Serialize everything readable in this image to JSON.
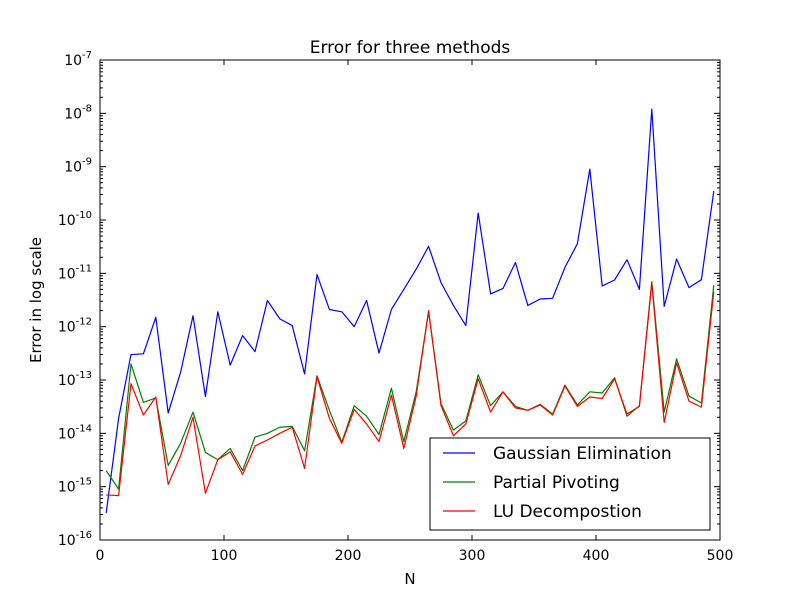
{
  "chart_data": {
    "type": "line",
    "title": "Error for three methods",
    "xlabel": "N",
    "ylabel": "Error in log scale",
    "xlim": [
      0,
      500
    ],
    "ylim": [
      1e-16,
      1e-07
    ],
    "yscale": "log",
    "grid": false,
    "legend_position": "lower-right",
    "x_ticks": [
      {
        "value": 0,
        "label": "0"
      },
      {
        "value": 100,
        "label": "100"
      },
      {
        "value": 200,
        "label": "200"
      },
      {
        "value": 300,
        "label": "300"
      },
      {
        "value": 400,
        "label": "400"
      },
      {
        "value": 500,
        "label": "500"
      }
    ],
    "y_ticks": [
      {
        "exp": -16,
        "base": "10",
        "sup": "-16"
      },
      {
        "exp": -15,
        "base": "10",
        "sup": "-15"
      },
      {
        "exp": -14,
        "base": "10",
        "sup": "-14"
      },
      {
        "exp": -13,
        "base": "10",
        "sup": "-13"
      },
      {
        "exp": -12,
        "base": "10",
        "sup": "-12"
      },
      {
        "exp": -11,
        "base": "10",
        "sup": "-11"
      },
      {
        "exp": -10,
        "base": "10",
        "sup": "-10"
      },
      {
        "exp": -9,
        "base": "10",
        "sup": "-9"
      },
      {
        "exp": -8,
        "base": "10",
        "sup": "-8"
      },
      {
        "exp": -7,
        "base": "10",
        "sup": "-7"
      }
    ],
    "x": [
      5,
      15,
      25,
      35,
      45,
      55,
      65,
      75,
      85,
      95,
      105,
      115,
      125,
      135,
      145,
      155,
      165,
      175,
      185,
      195,
      205,
      215,
      225,
      235,
      245,
      255,
      265,
      275,
      285,
      295,
      305,
      315,
      325,
      335,
      345,
      355,
      365,
      375,
      385,
      395,
      405,
      415,
      425,
      435,
      445,
      455,
      465,
      475,
      485,
      495
    ],
    "series": [
      {
        "name": "Gaussian Elimination",
        "color": "#0000ff",
        "values": [
          3.2e-16,
          1.9e-14,
          3e-13,
          3.1e-13,
          1.5e-12,
          2.4e-14,
          1.4e-13,
          1.6e-12,
          4.9e-14,
          1.9e-12,
          1.9e-13,
          6.8e-13,
          3.4e-13,
          3.1e-12,
          1.4e-12,
          1.05e-12,
          1.3e-13,
          9.5e-12,
          2.1e-12,
          1.9e-12,
          1e-12,
          3.1e-12,
          3.2e-13,
          2.1e-12,
          5e-12,
          1.2e-11,
          3.2e-11,
          6.7e-12,
          2.5e-12,
          1.05e-12,
          1.35e-10,
          4.1e-12,
          5.2e-12,
          1.6e-11,
          2.5e-12,
          3.3e-12,
          3.4e-12,
          1.3e-11,
          3.6e-11,
          9e-10,
          5.8e-12,
          7.5e-12,
          1.8e-11,
          5e-12,
          1.2e-08,
          2.4e-12,
          1.85e-11,
          5.4e-12,
          7.6e-12,
          3.5e-10
        ]
      },
      {
        "name": "Partial Pivoting",
        "color": "#008000",
        "values": [
          2e-15,
          9e-16,
          2e-13,
          3.8e-14,
          4.6e-14,
          2.5e-15,
          6.5e-15,
          2.5e-14,
          4.4e-15,
          3.2e-15,
          5.2e-15,
          2e-15,
          8.5e-15,
          1e-14,
          1.3e-14,
          1.35e-14,
          4.7e-15,
          1.2e-13,
          2.7e-14,
          6.8e-15,
          3.3e-14,
          2.1e-14,
          9.5e-15,
          7e-14,
          7e-15,
          6e-14,
          1.9e-12,
          3.6e-14,
          1.15e-14,
          1.7e-14,
          1.25e-13,
          3.3e-14,
          6e-14,
          3.2e-14,
          2.7e-14,
          3.5e-14,
          2.3e-14,
          8e-14,
          3.4e-14,
          6e-14,
          5.7e-14,
          1.1e-13,
          2.1e-14,
          3.3e-14,
          7e-12,
          2.5e-14,
          2.5e-13,
          5e-14,
          3.7e-14,
          6e-12
        ]
      },
      {
        "name": "LU Decompostion",
        "color": "#ff0000",
        "values": [
          7e-16,
          6.8e-16,
          8.5e-14,
          2.2e-14,
          4.8e-14,
          1.1e-15,
          3.8e-15,
          2e-14,
          7.5e-16,
          3.2e-15,
          4.5e-15,
          1.7e-15,
          5.8e-15,
          7.5e-15,
          1e-14,
          1.3e-14,
          2.2e-15,
          1.15e-13,
          1.9e-14,
          6.5e-15,
          2.8e-14,
          1.5e-14,
          7e-15,
          5.2e-14,
          5.2e-15,
          5e-14,
          2e-12,
          3.3e-14,
          9e-15,
          1.5e-14,
          1.05e-13,
          2.5e-14,
          6e-14,
          3e-14,
          2.7e-14,
          3.4e-14,
          2.2e-14,
          7.7e-14,
          3.2e-14,
          4.8e-14,
          4.5e-14,
          1.05e-13,
          2.3e-14,
          3.2e-14,
          6.5e-12,
          1.6e-14,
          2.1e-13,
          4e-14,
          3.1e-14,
          4.5e-12
        ]
      }
    ]
  }
}
